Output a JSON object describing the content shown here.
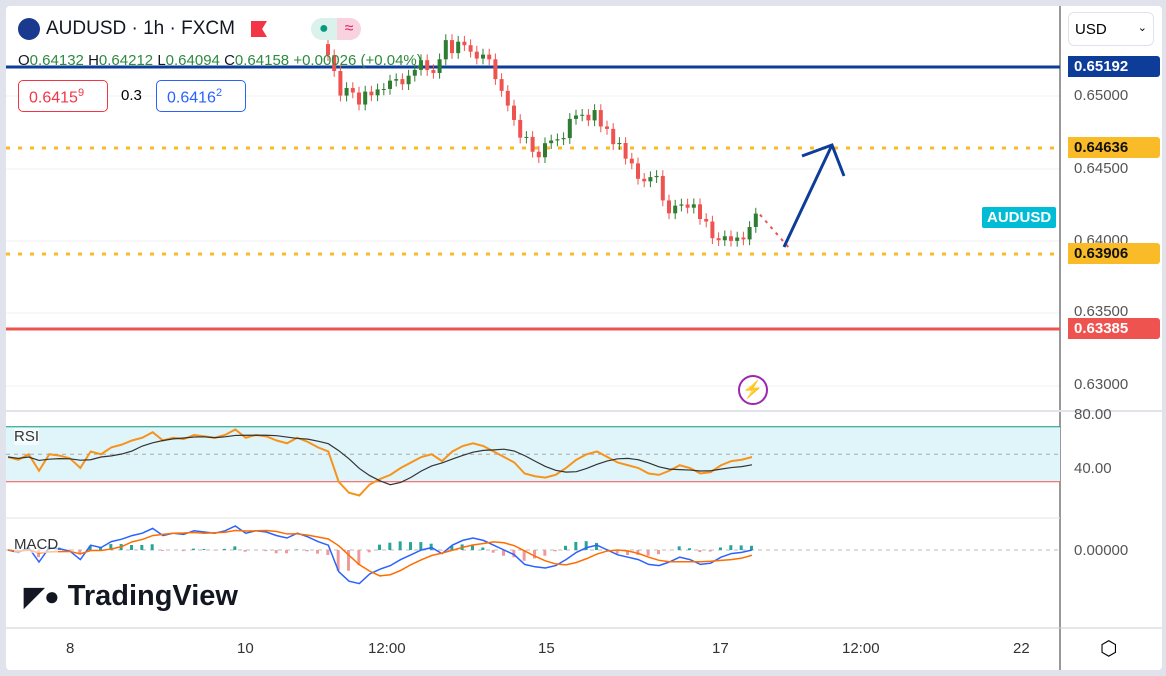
{
  "symbol": {
    "title": "AUDUSD · 1h · FXCM",
    "status_dot": "●",
    "status_wave": "≈"
  },
  "ohlc": {
    "o_label": "O",
    "o": "0.64132",
    "h_label": "H",
    "h": "0.64212",
    "l_label": "L",
    "l": "0.64094",
    "c_label": "C",
    "c": "0.64158",
    "change": "+0.00026 (+0.04%)"
  },
  "quote": {
    "sell": "0.6415",
    "sell_sup": "9",
    "spread": "0.3",
    "buy": "0.6416",
    "buy_sup": "2"
  },
  "currency_selector": {
    "value": "USD"
  },
  "price_axis": {
    "labels": [
      "0.65000",
      "0.64500",
      "0.64000",
      "0.63500",
      "0.63000"
    ],
    "tags": [
      {
        "text": "0.65192",
        "color": "#0d3d99"
      },
      {
        "text": "0.64636",
        "color": "#f9bb27"
      },
      {
        "text": "0.63906",
        "color": "#f9bb27"
      },
      {
        "text": "0.63385",
        "color": "#ef5350"
      }
    ],
    "symbol_tag": "AUDUSD"
  },
  "rsi": {
    "label": "RSI",
    "axis": [
      "80.00",
      "40.00"
    ],
    "values": [
      48,
      46,
      50,
      38,
      50,
      49,
      47,
      40,
      52,
      50,
      55,
      57,
      60,
      62,
      66,
      60,
      62,
      61,
      64,
      63,
      62,
      64,
      68,
      62,
      64,
      63,
      60,
      58,
      62,
      59,
      55,
      52,
      30,
      22,
      20,
      28,
      32,
      35,
      40,
      44,
      48,
      50,
      45,
      52,
      56,
      58,
      56,
      52,
      48,
      44,
      36,
      34,
      33,
      35,
      40,
      46,
      50,
      52,
      48,
      44,
      42,
      40,
      36,
      35,
      38,
      42,
      40,
      36,
      37,
      42,
      45,
      46,
      48
    ]
  },
  "macd": {
    "label": "MACD",
    "axis": "0.00000"
  },
  "time_axis": [
    "8",
    "10",
    "12:00",
    "15",
    "17",
    "12:00",
    "22"
  ],
  "price_path": [
    [
      320,
      0.6535
    ],
    [
      335,
      0.65
    ],
    [
      350,
      0.6498
    ],
    [
      365,
      0.6497
    ],
    [
      380,
      0.6505
    ],
    [
      400,
      0.6512
    ],
    [
      415,
      0.6525
    ],
    [
      430,
      0.652
    ],
    [
      440,
      0.6532
    ],
    [
      470,
      0.653
    ],
    [
      482,
      0.652
    ],
    [
      500,
      0.6498
    ],
    [
      510,
      0.648
    ],
    [
      522,
      0.6465
    ],
    [
      535,
      0.6458
    ],
    [
      550,
      0.647
    ],
    [
      570,
      0.6483
    ],
    [
      590,
      0.6486
    ],
    [
      605,
      0.6475
    ],
    [
      615,
      0.646
    ],
    [
      630,
      0.6445
    ],
    [
      650,
      0.6442
    ],
    [
      660,
      0.6415
    ],
    [
      675,
      0.6422
    ],
    [
      690,
      0.642
    ],
    [
      705,
      0.6405
    ],
    [
      720,
      0.6402
    ],
    [
      735,
      0.64
    ],
    [
      752,
      0.6414
    ]
  ],
  "brand": "TradingView",
  "colors": {
    "up": "#2e7d32",
    "down": "#ef5350",
    "rsi": "#f7931a",
    "accent": "#0d3d99"
  }
}
